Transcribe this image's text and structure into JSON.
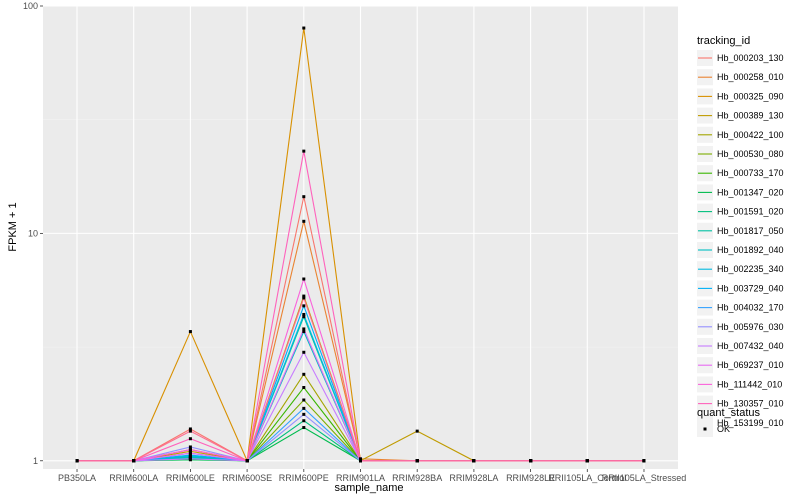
{
  "chart_data": {
    "type": "line",
    "y_scale": "log",
    "ylim": [
      0.92,
      100
    ],
    "xlabel": "sample_name",
    "ylabel": "FPKM + 1",
    "categories": [
      "PB350LA",
      "RRIM600LA",
      "RRIM600LE",
      "RRIM600SE",
      "RRIM600PE",
      "RRIM901LA",
      "RRIM928BA",
      "RRIM928LA",
      "RRIM928LE",
      "RRII105LA_Control",
      "RRII105LA_Stressed"
    ],
    "y_ticks": [
      1,
      10,
      100
    ],
    "y_tick_labels": [
      "1",
      "10",
      "100"
    ],
    "grid": true,
    "legend_position": "right",
    "legend_title": "tracking_id",
    "series": [
      {
        "name": "Hb_000203_130",
        "color": "#F8766D",
        "values": [
          1,
          1,
          1.38,
          1,
          14.5,
          1,
          1,
          1,
          1,
          1,
          1
        ]
      },
      {
        "name": "Hb_000258_010",
        "color": "#EA8331",
        "values": [
          1,
          1,
          1.12,
          1,
          11.3,
          1.02,
          1,
          1,
          1,
          1,
          1
        ]
      },
      {
        "name": "Hb_000325_090",
        "color": "#D89000",
        "values": [
          1,
          1,
          3.7,
          1,
          80,
          1,
          1,
          1,
          1,
          1,
          1
        ]
      },
      {
        "name": "Hb_000389_130",
        "color": "#C09B00",
        "values": [
          1,
          1,
          1.1,
          1,
          5.3,
          1,
          1.35,
          1,
          1,
          1,
          1
        ]
      },
      {
        "name": "Hb_000422_100",
        "color": "#A3A500",
        "values": [
          1,
          1,
          1.05,
          1,
          2.4,
          1,
          1,
          1,
          1,
          1,
          1
        ]
      },
      {
        "name": "Hb_000530_080",
        "color": "#7CAE00",
        "values": [
          1,
          1,
          1.03,
          1,
          1.85,
          1,
          1,
          1,
          1,
          1,
          1
        ]
      },
      {
        "name": "Hb_000733_170",
        "color": "#39B600",
        "values": [
          1,
          1,
          1.02,
          1,
          2.1,
          1,
          1,
          1,
          1,
          1,
          1
        ]
      },
      {
        "name": "Hb_001347_020",
        "color": "#00BB4E",
        "values": [
          1,
          1,
          1.01,
          1,
          1.4,
          1,
          1,
          1,
          1,
          1,
          1
        ]
      },
      {
        "name": "Hb_001591_020",
        "color": "#00BF7D",
        "values": [
          1,
          1,
          1.02,
          1,
          1.5,
          1,
          1,
          1,
          1,
          1,
          1
        ]
      },
      {
        "name": "Hb_001817_050",
        "color": "#00C1A3",
        "values": [
          1,
          1,
          1.04,
          1,
          4.3,
          1,
          1,
          1,
          1,
          1,
          1
        ]
      },
      {
        "name": "Hb_001892_040",
        "color": "#00BFC4",
        "values": [
          1,
          1,
          1.03,
          1,
          3.7,
          1,
          1,
          1,
          1,
          1,
          1
        ]
      },
      {
        "name": "Hb_002235_340",
        "color": "#00BAE0",
        "values": [
          1,
          1,
          1.05,
          1,
          4.4,
          1,
          1,
          1,
          1,
          1,
          1
        ]
      },
      {
        "name": "Hb_003729_040",
        "color": "#00B0F6",
        "values": [
          1,
          1,
          1.06,
          1,
          4.8,
          1,
          1,
          1,
          1,
          1,
          1
        ]
      },
      {
        "name": "Hb_004032_170",
        "color": "#35A2FF",
        "values": [
          1,
          1,
          1.08,
          1,
          1.7,
          1,
          1,
          1,
          1,
          1,
          1
        ]
      },
      {
        "name": "Hb_005976_030",
        "color": "#9590FF",
        "values": [
          1,
          1,
          1.15,
          1,
          1.6,
          1,
          1,
          1,
          1,
          1,
          1
        ]
      },
      {
        "name": "Hb_007432_040",
        "color": "#C77CFF",
        "values": [
          1,
          1,
          1.02,
          1,
          3.0,
          1,
          1,
          1,
          1,
          1,
          1
        ]
      },
      {
        "name": "Hb_069237_010",
        "color": "#E76BF3",
        "values": [
          1,
          1,
          1.08,
          1,
          3.8,
          1,
          1,
          1,
          1,
          1,
          1
        ]
      },
      {
        "name": "Hb_111442_010",
        "color": "#FA62DB",
        "values": [
          1,
          1,
          1.12,
          1,
          6.3,
          1,
          1,
          1,
          1,
          1,
          1
        ]
      },
      {
        "name": "Hb_130357_010",
        "color": "#FF62BC",
        "values": [
          1,
          1,
          1.25,
          1,
          23,
          1,
          1,
          1,
          1,
          1,
          1
        ]
      },
      {
        "name": "Hb_153199_010",
        "color": "#FF6C91",
        "values": [
          1,
          1,
          1.35,
          1,
          5.2,
          1,
          1,
          1,
          1,
          1,
          1
        ]
      }
    ],
    "shape_legend": {
      "title": "quant_status",
      "items": [
        {
          "label": "OK"
        }
      ]
    },
    "colors": {
      "panel": "#EBEBEB",
      "grid_major": "#FFFFFF",
      "grid_minor": "#F2F2F2",
      "point": "#000000"
    }
  }
}
